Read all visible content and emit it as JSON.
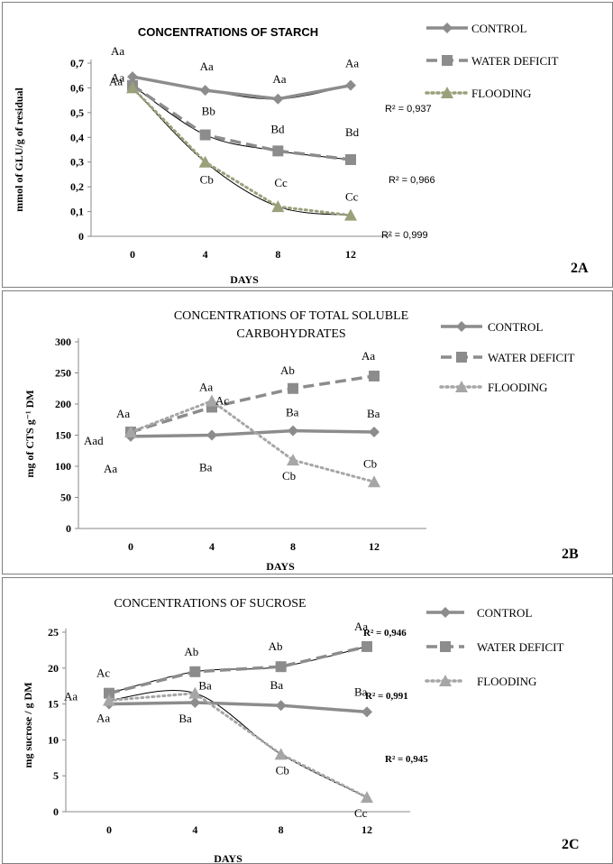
{
  "chart_data": [
    {
      "type": "line",
      "panel_label": "2A",
      "title": "CONCENTRATIONS OF STARCH",
      "xlabel": "DAYS",
      "ylabel": "mmol of GLU/g of residual",
      "x": [
        0,
        4,
        8,
        12
      ],
      "ylim": [
        0,
        0.7
      ],
      "yticks": [
        "0",
        "0,1",
        "0,2",
        "0,3",
        "0,4",
        "0,5",
        "0,6",
        "0,7"
      ],
      "legend_position": "right",
      "series": [
        {
          "name": "CONTROL",
          "marker": "diamond",
          "color": "#8c8c8c",
          "dash": "solid",
          "values": [
            0.645,
            0.59,
            0.555,
            0.61
          ],
          "labels": [
            "Aa",
            "Aa",
            "Aa",
            "Aa"
          ]
        },
        {
          "name": "WATER DEFICIT",
          "marker": "square",
          "color": "#8c8c8c",
          "dash": "dashed",
          "values": [
            0.61,
            0.41,
            0.345,
            0.31
          ],
          "labels": [
            "Aa",
            "Bb",
            "Bd",
            "Bd"
          ]
        },
        {
          "name": "FLOODING",
          "marker": "triangle",
          "color": "#9aa07a",
          "dash": "dotted",
          "values": [
            0.6,
            0.3,
            0.12,
            0.085
          ],
          "labels": [
            "Aa",
            "Cb",
            "Cc",
            "Cc"
          ]
        }
      ],
      "r2": [
        "R² = 0,937",
        "R² = 0,966",
        "R² = 0,999"
      ]
    },
    {
      "type": "line",
      "panel_label": "2B",
      "title_lines": [
        "CONCENTRATIONS OF TOTAL SOLUBLE",
        "CARBOHYDRATES"
      ],
      "xlabel": "DAYS",
      "ylabel": "mg of CTS g⁻¹ DM",
      "x": [
        0,
        4,
        8,
        12
      ],
      "ylim": [
        0,
        300
      ],
      "yticks": [
        "0",
        "50",
        "100",
        "150",
        "200",
        "250",
        "300"
      ],
      "legend_position": "right",
      "series": [
        {
          "name": "CONTROL",
          "marker": "diamond",
          "color": "#8c8c8c",
          "dash": "solid",
          "values": [
            148,
            150,
            157,
            155
          ],
          "labels": [
            "Aa",
            "Ba",
            "Ba",
            "Ba"
          ]
        },
        {
          "name": "WATER DEFICIT",
          "marker": "square",
          "color": "#8c8c8c",
          "dash": "dashed",
          "values": [
            155,
            195,
            225,
            245
          ],
          "labels": [
            "Aa",
            "Aa",
            "Ab",
            "Aa"
          ]
        },
        {
          "name": "FLOODING",
          "marker": "triangle",
          "color": "#a6a6a6",
          "dash": "dotted",
          "values": [
            155,
            205,
            110,
            75
          ],
          "labels": [
            "Aad",
            "Ac",
            "Cb",
            "Cb"
          ]
        }
      ]
    },
    {
      "type": "line",
      "panel_label": "2C",
      "title": "CONCENTRATIONS OF SUCROSE",
      "xlabel": "DAYS",
      "ylabel": "mg sucrose / g DM",
      "x": [
        0,
        4,
        8,
        12
      ],
      "ylim": [
        0,
        25
      ],
      "yticks": [
        "0",
        "5",
        "10",
        "15",
        "20",
        "25"
      ],
      "legend_position": "right",
      "series": [
        {
          "name": "CONTROL",
          "marker": "diamond",
          "color": "#8c8c8c",
          "dash": "solid",
          "values": [
            15,
            15.2,
            14.8,
            13.9
          ],
          "labels": [
            "Aa",
            "Ba",
            "Ba",
            "Ba"
          ]
        },
        {
          "name": "WATER DEFICIT",
          "marker": "square",
          "color": "#8c8c8c",
          "dash": "dashed",
          "values": [
            16.5,
            19.5,
            20.2,
            23
          ],
          "labels": [
            "Ac",
            "Ab",
            "Ab",
            "Aa"
          ]
        },
        {
          "name": "FLOODING",
          "marker": "triangle",
          "color": "#a6a6a6",
          "dash": "dotted",
          "values": [
            15.5,
            16.5,
            8,
            2
          ],
          "labels": [
            "Aa",
            "Ba",
            "Cb",
            "Cc"
          ]
        }
      ],
      "r2": [
        "R² = 0,946",
        "R² = 0,991",
        "R² = 0,945"
      ]
    }
  ]
}
